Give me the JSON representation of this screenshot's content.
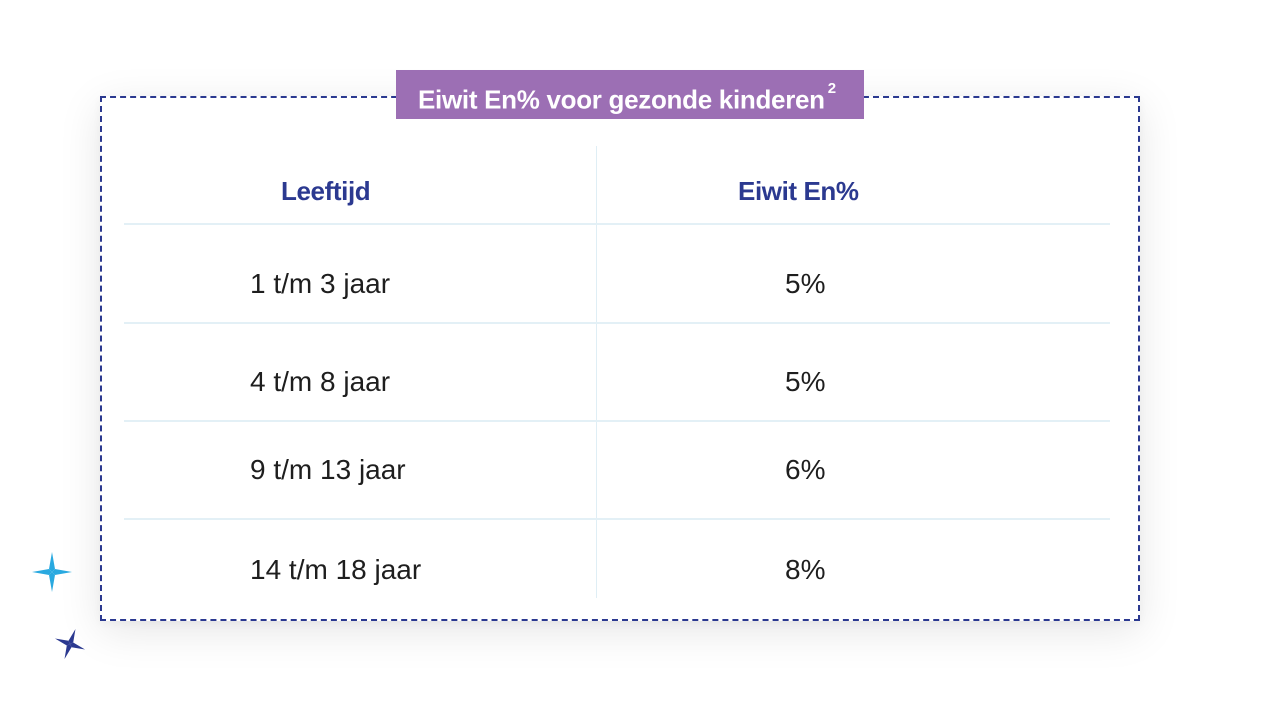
{
  "title": {
    "text": "Eiwit En% voor gezonde kinderen",
    "footnote": "2"
  },
  "table": {
    "headers": [
      "Leeftijd",
      "Eiwit En%"
    ],
    "rows": [
      {
        "age": "1 t/m 3 jaar",
        "value": "5%"
      },
      {
        "age": "4 t/m 8 jaar",
        "value": "5%"
      },
      {
        "age": "9 t/m 13 jaar",
        "value": "6%"
      },
      {
        "age": "14 t/m 18 jaar",
        "value": "8%"
      }
    ]
  },
  "colors": {
    "accent_purple": "#9c6fb4",
    "navy": "#2b3990",
    "sparkle_blue": "#29a9e0"
  },
  "decorations": [
    "sparkle-icon",
    "sparkle-icon"
  ]
}
